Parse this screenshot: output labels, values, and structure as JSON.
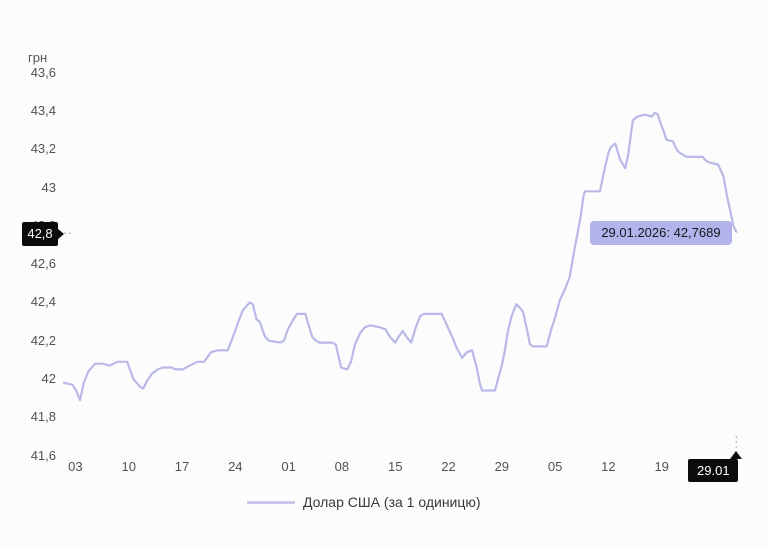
{
  "chart_data": {
    "type": "line",
    "title": "",
    "ylabel": "грн",
    "grid": false,
    "legend_position": "bottom-center",
    "colors": {
      "line": "#b9b9e8",
      "legend_swatch": "#c7c7ec",
      "tooltip_bg": "#b3b3ec",
      "tooltip_text": "#17171f",
      "badge_bg": "#0b0b0b",
      "badge_text": "#ffffff",
      "tick_text": "#515257",
      "crosshair_dash": "#c2c2c6"
    },
    "y_axis": {
      "min": 41.6,
      "max": 43.6,
      "tick_step": 0.2,
      "tick_labels": [
        "43,6",
        "43,4",
        "43,2",
        "43",
        "42,8",
        "42,6",
        "42,4",
        "42,2",
        "42",
        "41,8",
        "41,6"
      ]
    },
    "x_axis": {
      "span_days": 88.5,
      "ticks": [
        {
          "label": "03",
          "day": 1.5
        },
        {
          "label": "10",
          "day": 8.5
        },
        {
          "label": "17",
          "day": 15.5
        },
        {
          "label": "24",
          "day": 22.5
        },
        {
          "label": "01",
          "day": 29.5
        },
        {
          "label": "08",
          "day": 36.5
        },
        {
          "label": "15",
          "day": 43.5
        },
        {
          "label": "22",
          "day": 50.5
        },
        {
          "label": "29",
          "day": 57.5
        },
        {
          "label": "05",
          "day": 64.5
        },
        {
          "label": "12",
          "day": 71.5
        },
        {
          "label": "19",
          "day": 78.5
        }
      ]
    },
    "current": {
      "day": 88.3,
      "value": 42.7689,
      "y_badge_label": "42,8",
      "x_badge_label": "29.01"
    },
    "tooltip": {
      "date": "29.01.2026",
      "value": "42,7689",
      "text": "29.01.2026: 42,7689"
    },
    "series": [
      {
        "name": "Долар США (за 1 одиницю)",
        "color": "#b9b9e8",
        "points": [
          [
            0,
            41.98
          ],
          [
            1.1,
            41.97
          ],
          [
            1.6,
            41.94
          ],
          [
            2.1,
            41.89
          ],
          [
            2.6,
            41.98
          ],
          [
            3.2,
            42.04
          ],
          [
            4.1,
            42.08
          ],
          [
            5.1,
            42.08
          ],
          [
            6,
            42.07
          ],
          [
            7,
            42.09
          ],
          [
            8.3,
            42.09
          ],
          [
            9.1,
            42.0
          ],
          [
            10,
            41.96
          ],
          [
            10.4,
            41.95
          ],
          [
            10.9,
            41.99
          ],
          [
            11.6,
            42.03
          ],
          [
            12.3,
            42.05
          ],
          [
            13,
            42.06
          ],
          [
            14.1,
            42.06
          ],
          [
            14.7,
            42.05
          ],
          [
            15.6,
            42.05
          ],
          [
            16.5,
            42.07
          ],
          [
            17.5,
            42.09
          ],
          [
            18.4,
            42.09
          ],
          [
            19.3,
            42.14
          ],
          [
            20.2,
            42.15
          ],
          [
            21.5,
            42.15
          ],
          [
            22.2,
            42.22
          ],
          [
            22.9,
            42.3
          ],
          [
            23.5,
            42.36
          ],
          [
            24.4,
            42.4
          ],
          [
            24.8,
            42.39
          ],
          [
            25.3,
            42.31
          ],
          [
            25.7,
            42.3
          ],
          [
            26.4,
            42.22
          ],
          [
            26.9,
            42.2
          ],
          [
            28.4,
            42.19
          ],
          [
            28.9,
            42.2
          ],
          [
            29.4,
            42.26
          ],
          [
            30.1,
            42.31
          ],
          [
            30.6,
            42.34
          ],
          [
            31.7,
            42.34
          ],
          [
            32,
            42.3
          ],
          [
            32.6,
            42.22
          ],
          [
            33.1,
            42.2
          ],
          [
            33.6,
            42.19
          ],
          [
            35.2,
            42.19
          ],
          [
            35.7,
            42.18
          ],
          [
            36.4,
            42.06
          ],
          [
            37.2,
            42.05
          ],
          [
            37.7,
            42.09
          ],
          [
            38.2,
            42.18
          ],
          [
            38.9,
            42.24
          ],
          [
            39.5,
            42.27
          ],
          [
            40.2,
            42.28
          ],
          [
            41.5,
            42.27
          ],
          [
            42.2,
            42.26
          ],
          [
            42.8,
            42.22
          ],
          [
            43.5,
            42.19
          ],
          [
            44.1,
            42.23
          ],
          [
            44.5,
            42.25
          ],
          [
            45,
            42.22
          ],
          [
            45.6,
            42.19
          ],
          [
            46.2,
            42.27
          ],
          [
            46.8,
            42.33
          ],
          [
            47.3,
            42.34
          ],
          [
            49.6,
            42.34
          ],
          [
            50.3,
            42.28
          ],
          [
            51,
            42.22
          ],
          [
            51.6,
            42.16
          ],
          [
            52.3,
            42.11
          ],
          [
            52.9,
            42.14
          ],
          [
            53.6,
            42.15
          ],
          [
            54.2,
            42.06
          ],
          [
            54.6,
            41.98
          ],
          [
            54.9,
            41.94
          ],
          [
            56.6,
            41.94
          ],
          [
            57,
            42.0
          ],
          [
            57.5,
            42.07
          ],
          [
            57.9,
            42.15
          ],
          [
            58.3,
            42.25
          ],
          [
            58.8,
            42.33
          ],
          [
            59.4,
            42.39
          ],
          [
            59.9,
            42.37
          ],
          [
            60.3,
            42.35
          ],
          [
            60.8,
            42.26
          ],
          [
            61.2,
            42.18
          ],
          [
            61.6,
            42.17
          ],
          [
            63.4,
            42.17
          ],
          [
            64,
            42.26
          ],
          [
            64.5,
            42.32
          ],
          [
            65.1,
            42.41
          ],
          [
            65.8,
            42.47
          ],
          [
            66.4,
            42.53
          ],
          [
            67.1,
            42.69
          ],
          [
            67.5,
            42.77
          ],
          [
            67.9,
            42.86
          ],
          [
            68.2,
            42.95
          ],
          [
            68.4,
            42.98
          ],
          [
            70.4,
            42.98
          ],
          [
            70.8,
            43.06
          ],
          [
            71.2,
            43.13
          ],
          [
            71.5,
            43.18
          ],
          [
            71.8,
            43.21
          ],
          [
            72.4,
            43.23
          ],
          [
            73,
            43.15
          ],
          [
            73.7,
            43.1
          ],
          [
            74.1,
            43.17
          ],
          [
            74.3,
            43.23
          ],
          [
            74.7,
            43.35
          ],
          [
            75.3,
            43.37
          ],
          [
            76.3,
            43.38
          ],
          [
            77.2,
            43.37
          ],
          [
            77.6,
            43.39
          ],
          [
            78,
            43.38
          ],
          [
            78.4,
            43.33
          ],
          [
            78.8,
            43.29
          ],
          [
            79.1,
            43.25
          ],
          [
            80,
            43.24
          ],
          [
            80.2,
            43.22
          ],
          [
            80.6,
            43.19
          ],
          [
            81.3,
            43.17
          ],
          [
            81.8,
            43.16
          ],
          [
            83.9,
            43.16
          ],
          [
            84.3,
            43.14
          ],
          [
            84.8,
            43.13
          ],
          [
            85.9,
            43.12
          ],
          [
            86.6,
            43.06
          ],
          [
            87.1,
            42.95
          ],
          [
            87.5,
            42.88
          ],
          [
            87.9,
            42.8
          ],
          [
            88.3,
            42.7689
          ]
        ]
      }
    ]
  }
}
